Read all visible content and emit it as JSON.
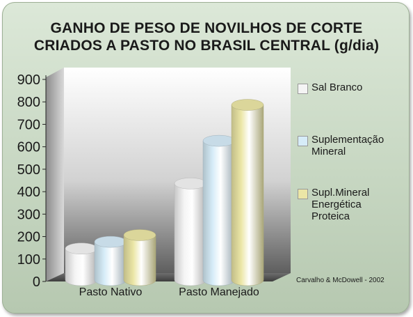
{
  "chart_data": {
    "type": "bar",
    "title": "GANHO DE PESO DE NOVILHOS DE CORTE CRIADOS A PASTO NO BRASIL CENTRAL (g/dia)",
    "title_lines": [
      "GANHO DE PESO DE NOVILHOS DE CORTE",
      "CRIADOS A PASTO NO BRASIL CENTRAL (g/dia)"
    ],
    "categories": [
      "Pasto Nativo",
      "Pasto Manejado"
    ],
    "series": [
      {
        "name": "Sal Branco",
        "values": [
          190,
          480
        ],
        "color": "#f4f4f4"
      },
      {
        "name": "Suplementação Mineral",
        "values": [
          220,
          670
        ],
        "color": "#d6ecf8"
      },
      {
        "name": "Supl.Mineral Energética Proteica",
        "values": [
          250,
          830
        ],
        "color": "#ebe6a6"
      }
    ],
    "legend": [
      {
        "lines": [
          "Sal Branco"
        ]
      },
      {
        "lines": [
          "Suplementação",
          "Mineral"
        ]
      },
      {
        "lines": [
          "Supl.Mineral",
          "Energética",
          "Proteica"
        ]
      }
    ],
    "ylim": [
      0,
      900
    ],
    "yticks": [
      "0",
      "100",
      "200",
      "300",
      "400",
      "500",
      "600",
      "700",
      "800",
      "900"
    ],
    "grid": false,
    "legend_position": "right",
    "source": "Carvalho & McDowell - 2002"
  }
}
